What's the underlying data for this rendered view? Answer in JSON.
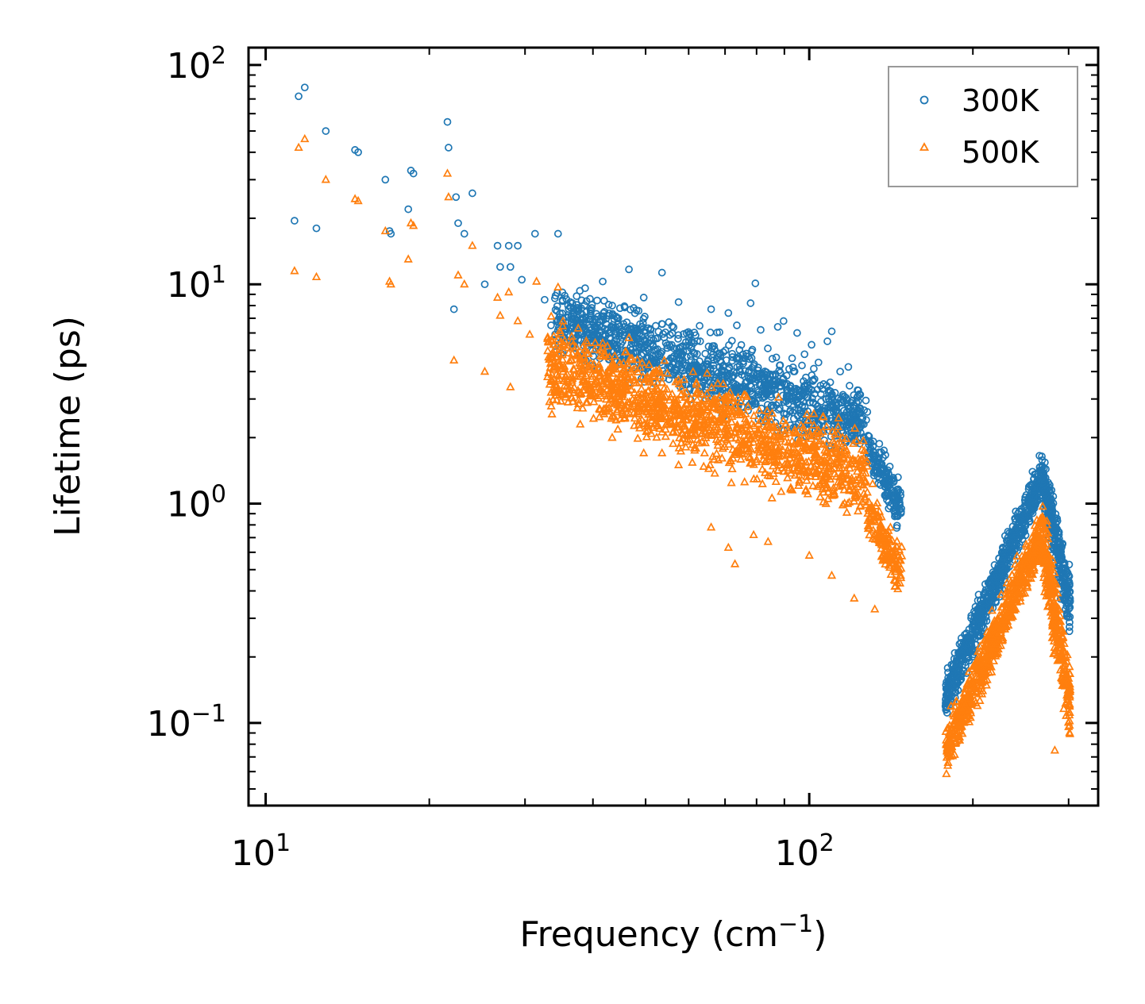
{
  "chart_data": {
    "type": "scatter",
    "title": "",
    "xlabel": "Frequency (cm",
    "xlabel_sup": "−1",
    "xlabel_end": ")",
    "ylabel": "Lifetime (ps)",
    "xscale": "log",
    "yscale": "log",
    "xlim": [
      9.3,
      340
    ],
    "ylim": [
      0.042,
      120
    ],
    "x_ticks": [
      {
        "value": 10,
        "base": "10",
        "exp": "1"
      },
      {
        "value": 100,
        "base": "10",
        "exp": "2"
      }
    ],
    "y_ticks": [
      {
        "value": 0.1,
        "base": "10",
        "exp": "−1"
      },
      {
        "value": 1,
        "base": "10",
        "exp": "0"
      },
      {
        "value": 10,
        "base": "10",
        "exp": "1"
      },
      {
        "value": 100,
        "base": "10",
        "exp": "2"
      }
    ],
    "legend_position": "top-right",
    "series": [
      {
        "name": "300K",
        "marker": "circle",
        "color": "#1f77b4",
        "points": [
          [
            11.3,
            19.5
          ],
          [
            11.5,
            72
          ],
          [
            11.8,
            79
          ],
          [
            12.4,
            18
          ],
          [
            12.9,
            50
          ],
          [
            14.6,
            41
          ],
          [
            14.8,
            40
          ],
          [
            16.6,
            30
          ],
          [
            16.9,
            17.5
          ],
          [
            17.0,
            17
          ],
          [
            18.3,
            22
          ],
          [
            18.5,
            33
          ],
          [
            18.7,
            32
          ],
          [
            21.6,
            55
          ],
          [
            21.7,
            42
          ],
          [
            22.4,
            25
          ],
          [
            22.6,
            19
          ],
          [
            22.2,
            7.7
          ],
          [
            23.2,
            17
          ],
          [
            24.0,
            26
          ],
          [
            25.3,
            10
          ],
          [
            26.7,
            15
          ],
          [
            27.0,
            12
          ],
          [
            28.0,
            15
          ],
          [
            28.2,
            12
          ],
          [
            29.1,
            15
          ],
          [
            29.6,
            10.5
          ],
          [
            31.3,
            17
          ],
          [
            32.6,
            8.5
          ],
          [
            34.5,
            17
          ],
          [
            33.5,
            6.5
          ],
          [
            36.0,
            8.0
          ],
          [
            37.9,
            6.6
          ],
          [
            38.7,
            9.6
          ],
          [
            40.2,
            5.8
          ],
          [
            41.7,
            10.3
          ],
          [
            43.4,
            8.0
          ],
          [
            45.1,
            5.0
          ],
          [
            46.6,
            11.7
          ],
          [
            48.0,
            6.3
          ],
          [
            49.6,
            8.7
          ],
          [
            51.4,
            4.4
          ],
          [
            53.6,
            11.3
          ],
          [
            55.3,
            5.3
          ],
          [
            57.5,
            8.3
          ],
          [
            60.4,
            5.9
          ],
          [
            63.0,
            5.5
          ],
          [
            66.0,
            7.7
          ],
          [
            68.3,
            4.8
          ],
          [
            71.0,
            7.4
          ],
          [
            73.6,
            6.5
          ],
          [
            76.0,
            4.6
          ],
          [
            78.0,
            8.2
          ],
          [
            79.6,
            10.1
          ],
          [
            81.4,
            6.2
          ],
          [
            83.9,
            5.1
          ],
          [
            87.5,
            6.4
          ],
          [
            89.7,
            6.8
          ],
          [
            93.0,
            4.6
          ],
          [
            95.0,
            6.0
          ],
          [
            98.0,
            4.8
          ],
          [
            101.0,
            5.3
          ],
          [
            104.0,
            4.4
          ],
          [
            108.0,
            5.5
          ],
          [
            110.0,
            6.1
          ],
          [
            114.0,
            4.0
          ],
          [
            118.0,
            4.2
          ],
          [
            124.0,
            2.7
          ],
          [
            126.0,
            2.3
          ],
          [
            132.0,
            1.5
          ],
          [
            136.0,
            1.45
          ],
          [
            140.0,
            0.95
          ],
          [
            144.0,
            0.92
          ],
          [
            239.0,
            0.72
          ]
        ],
        "clusters": [
          {
            "x": [
              34,
              128
            ],
            "ymid_start": 7.0,
            "ymid_end": 2.3,
            "spread": 0.22,
            "count": 1200
          },
          {
            "x": [
              128,
              148
            ],
            "ymid_start": 1.8,
            "ymid_end": 0.95,
            "spread": 0.15,
            "count": 150
          },
          {
            "x": [
              178,
              268
            ],
            "ymid_start": 0.13,
            "ymid_end": 1.35,
            "spread": 0.14,
            "count": 700
          },
          {
            "x": [
              268,
              302
            ],
            "ymid_start": 1.3,
            "ymid_end": 0.35,
            "spread": 0.2,
            "count": 300
          }
        ]
      },
      {
        "name": "500K",
        "marker": "triangle",
        "color": "#ff7f0e",
        "points": [
          [
            11.3,
            11.5
          ],
          [
            11.5,
            42
          ],
          [
            11.8,
            46
          ],
          [
            12.4,
            10.8
          ],
          [
            12.9,
            30
          ],
          [
            14.6,
            24.5
          ],
          [
            14.8,
            24
          ],
          [
            16.6,
            17.5
          ],
          [
            16.9,
            10.3
          ],
          [
            17.0,
            10.0
          ],
          [
            18.3,
            13
          ],
          [
            18.5,
            19
          ],
          [
            18.7,
            18.5
          ],
          [
            21.6,
            32
          ],
          [
            21.7,
            25
          ],
          [
            22.2,
            4.5
          ],
          [
            22.6,
            11
          ],
          [
            23.2,
            10
          ],
          [
            24.0,
            15
          ],
          [
            25.3,
            4.0
          ],
          [
            26.7,
            8.7
          ],
          [
            27.0,
            7.2
          ],
          [
            28.0,
            9.2
          ],
          [
            28.2,
            3.4
          ],
          [
            29.1,
            6.8
          ],
          [
            30.6,
            5.9
          ],
          [
            31.5,
            10.3
          ],
          [
            33.5,
            4.4
          ],
          [
            34.5,
            9.7
          ],
          [
            36.0,
            2.9
          ],
          [
            37.9,
            2.3
          ],
          [
            40.2,
            3.1
          ],
          [
            41.7,
            5.4
          ],
          [
            43.4,
            2.0
          ],
          [
            45.1,
            3.5
          ],
          [
            46.6,
            5.7
          ],
          [
            49.6,
            1.7
          ],
          [
            51.4,
            3.9
          ],
          [
            53.6,
            1.7
          ],
          [
            57.5,
            1.5
          ],
          [
            63.0,
            2.6
          ],
          [
            66.0,
            0.78
          ],
          [
            71.0,
            0.63
          ],
          [
            73.0,
            0.53
          ],
          [
            79.0,
            0.72
          ],
          [
            84.0,
            0.67
          ],
          [
            100.0,
            0.58
          ],
          [
            110.0,
            0.47
          ],
          [
            121.0,
            0.37
          ],
          [
            132.0,
            0.33
          ],
          [
            144.0,
            0.42
          ],
          [
            283.0,
            0.075
          ]
        ],
        "clusters": [
          {
            "x": [
              33,
              128
            ],
            "ymid_start": 4.3,
            "ymid_end": 1.3,
            "spread": 0.26,
            "count": 1300
          },
          {
            "x": [
              128,
              148
            ],
            "ymid_start": 0.9,
            "ymid_end": 0.5,
            "spread": 0.18,
            "count": 150
          },
          {
            "x": [
              178,
              268
            ],
            "ymid_start": 0.075,
            "ymid_end": 0.75,
            "spread": 0.16,
            "count": 700
          },
          {
            "x": [
              268,
              302
            ],
            "ymid_start": 0.7,
            "ymid_end": 0.12,
            "spread": 0.24,
            "count": 300
          }
        ]
      }
    ]
  }
}
